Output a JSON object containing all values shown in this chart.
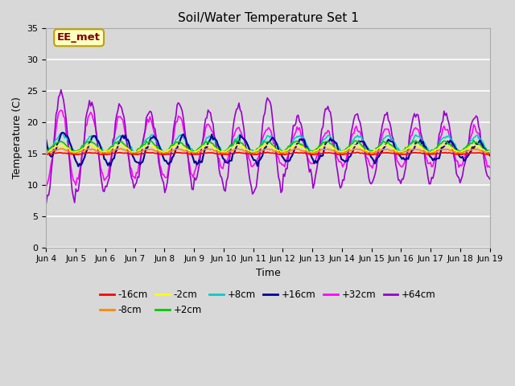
{
  "title": "Soil/Water Temperature Set 1",
  "xlabel": "Time",
  "ylabel": "Temperature (C)",
  "ylim": [
    0,
    35
  ],
  "xlim": [
    0,
    15
  ],
  "yticks": [
    0,
    5,
    10,
    15,
    20,
    25,
    30,
    35
  ],
  "xtick_labels": [
    "Jun 4",
    "Jun 5",
    "Jun 6",
    "Jun 7",
    "Jun 8",
    "Jun 9",
    "Jun 10",
    "Jun 11",
    "Jun 12",
    "Jun 13",
    "Jun 14",
    "Jun 15",
    "Jun 16",
    "Jun 17",
    "Jun 18",
    "Jun 19"
  ],
  "bg_color": "#d8d8d8",
  "plot_bg_color": "#d8d8d8",
  "grid_color": "#ffffff",
  "annotation_text": "EE_met",
  "annotation_bg": "#ffffc0",
  "annotation_border": "#c0a000",
  "annotation_text_color": "#800000",
  "series_labels": [
    "-16cm",
    "-8cm",
    "-2cm",
    "+2cm",
    "+8cm",
    "+16cm",
    "+32cm",
    "+64cm"
  ],
  "series_colors": [
    "#ff0000",
    "#ff8800",
    "#ffff00",
    "#00cc00",
    "#00cccc",
    "#000099",
    "#ff00ff",
    "#9900cc"
  ],
  "figsize": [
    6.4,
    4.8
  ],
  "dpi": 100
}
